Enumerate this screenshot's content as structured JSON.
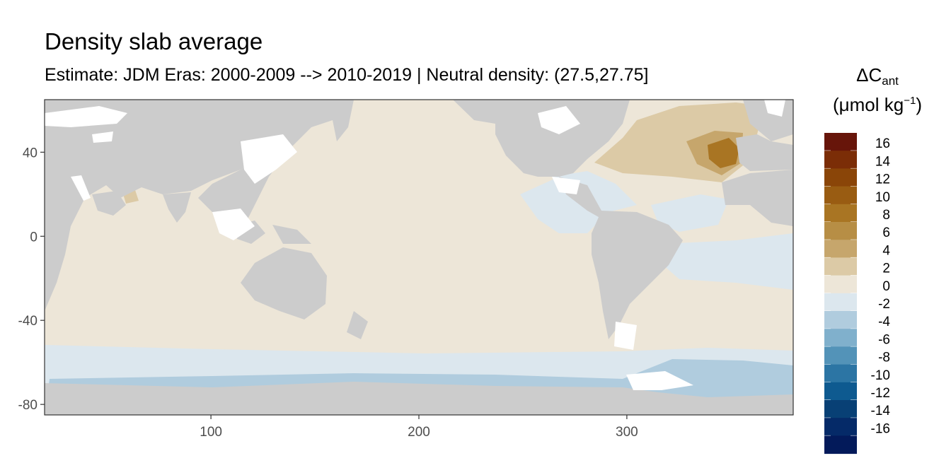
{
  "chart_data": {
    "type": "heatmap",
    "title": "Density slab average",
    "subtitle": "Estimate: JDM Eras: 2000-2009 --> 2010-2019 | Neutral density: (27.5,27.75]",
    "legend_title_main": "ΔC",
    "legend_title_sub": "ant",
    "legend_unit_prefix": "(μmol kg",
    "legend_unit_sup": "−1",
    "legend_unit_suffix": ")",
    "xlim": [
      20,
      380
    ],
    "ylim": [
      -85,
      65
    ],
    "x_ticks": [
      100,
      200,
      300
    ],
    "y_ticks": [
      40,
      0,
      -40,
      -80
    ],
    "legend_placement": "right",
    "land_color": "#cccccc",
    "nodata_color": "#ffffff",
    "legend_bins": [
      {
        "label": "16",
        "color": "#67150a"
      },
      {
        "label": "14",
        "color": "#7b2d07"
      },
      {
        "label": "12",
        "color": "#8a4508"
      },
      {
        "label": "10",
        "color": "#995c12"
      },
      {
        "label": "8",
        "color": "#a97523"
      },
      {
        "label": "6",
        "color": "#b78e45"
      },
      {
        "label": "4",
        "color": "#c6a66c"
      },
      {
        "label": "2",
        "color": "#dccaa6"
      },
      {
        "label": "0",
        "color": "#ede6d8"
      },
      {
        "label": "-2",
        "color": "#dce7ee"
      },
      {
        "label": "-4",
        "color": "#b0ccde"
      },
      {
        "label": "-6",
        "color": "#80b0cc"
      },
      {
        "label": "-8",
        "color": "#5393b8"
      },
      {
        "label": "-10",
        "color": "#2c75a4"
      },
      {
        "label": "-12",
        "color": "#0e5a90"
      },
      {
        "label": "-14",
        "color": "#084075"
      },
      {
        "label": "-16",
        "color": "#052a68"
      },
      {
        "label": "",
        "color": "#031a5a"
      }
    ]
  }
}
